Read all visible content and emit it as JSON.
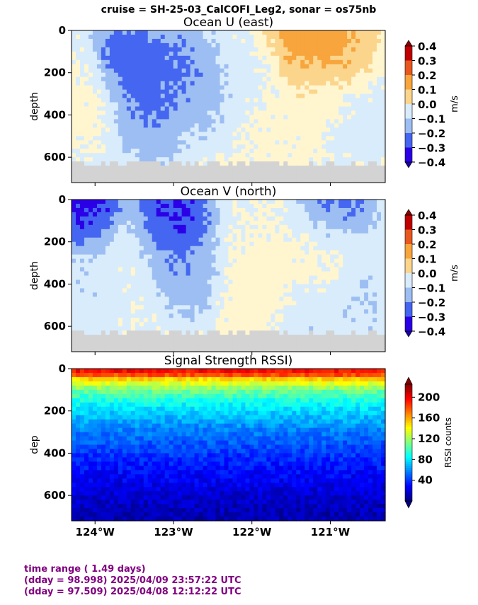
{
  "suptitle": "cruise = SH-25-03_CalCOFI_Leg2,  sonar = os75nb",
  "footer": {
    "line1": "time range ( 1.49 days)",
    "line2": "(dday = 98.998) 2025/04/09 23:57:22 UTC",
    "line3": "(dday = 97.509) 2025/04/08 12:12:22 UTC"
  },
  "chart_data": [
    {
      "type": "heatmap",
      "title": "Ocean U (east)",
      "ylabel": "depth",
      "ylim": [
        720,
        0
      ],
      "yticks": [
        0,
        200,
        400,
        600
      ],
      "xlim": [
        -124.3,
        -120.3
      ],
      "xticks": [
        -124,
        -123,
        -122,
        -121
      ],
      "xtick_labels": [
        "124°W",
        "123°W",
        "122°W",
        "121°W"
      ],
      "show_xticklabels": false,
      "colorbar": {
        "label": "m/s",
        "ticks": [
          "0.4",
          "0.3",
          "0.2",
          "0.1",
          "0.0",
          "−0.1",
          "−0.2",
          "−0.3",
          "−0.4"
        ],
        "vmin": -0.4,
        "vmax": 0.4
      },
      "colormap": "rdbu_discrete",
      "bottom_mask_depth": 620,
      "features": [
        {
          "x": -123.6,
          "y": 150,
          "value": -0.35
        },
        {
          "x": -123.2,
          "y": 250,
          "value": -0.28
        },
        {
          "x": -123.3,
          "y": 420,
          "value": -0.22
        },
        {
          "x": -122.9,
          "y": 180,
          "value": -0.25
        },
        {
          "x": -122.6,
          "y": 300,
          "value": -0.15
        },
        {
          "x": -124.1,
          "y": 300,
          "value": 0.05
        },
        {
          "x": -121.9,
          "y": 200,
          "value": -0.05
        },
        {
          "x": -121.4,
          "y": 80,
          "value": 0.35
        },
        {
          "x": -120.9,
          "y": 60,
          "value": 0.28
        },
        {
          "x": -121.2,
          "y": 300,
          "value": 0.06
        },
        {
          "x": -120.6,
          "y": 450,
          "value": -0.05
        },
        {
          "x": -121.7,
          "y": 500,
          "value": 0.04
        }
      ]
    },
    {
      "type": "heatmap",
      "title": "Ocean V (north)",
      "ylabel": "depth",
      "ylim": [
        720,
        0
      ],
      "yticks": [
        0,
        200,
        400,
        600
      ],
      "xlim": [
        -124.3,
        -120.3
      ],
      "xticks": [
        -124,
        -123,
        -122,
        -121
      ],
      "xtick_labels": [
        "124°W",
        "123°W",
        "122°W",
        "121°W"
      ],
      "show_xticklabels": false,
      "colorbar": {
        "label": "m/s",
        "ticks": [
          "0.4",
          "0.3",
          "0.2",
          "0.1",
          "0.0",
          "−0.1",
          "−0.2",
          "−0.3",
          "−0.4"
        ],
        "vmin": -0.4,
        "vmax": 0.4
      },
      "colormap": "rdbu_discrete",
      "bottom_mask_depth": 620,
      "features": [
        {
          "x": -124.1,
          "y": 40,
          "value": -0.4
        },
        {
          "x": -123.0,
          "y": 50,
          "value": -0.4
        },
        {
          "x": -123.1,
          "y": 200,
          "value": -0.3
        },
        {
          "x": -122.8,
          "y": 350,
          "value": -0.2
        },
        {
          "x": -123.5,
          "y": 300,
          "value": 0.02
        },
        {
          "x": -124.0,
          "y": 400,
          "value": -0.1
        },
        {
          "x": -122.0,
          "y": 350,
          "value": 0.02
        },
        {
          "x": -121.9,
          "y": 450,
          "value": 0.12
        },
        {
          "x": -121.0,
          "y": 250,
          "value": 0.05
        },
        {
          "x": -120.9,
          "y": 40,
          "value": -0.3
        },
        {
          "x": -120.6,
          "y": 450,
          "value": -0.12
        },
        {
          "x": -121.4,
          "y": 600,
          "value": -0.1
        }
      ]
    },
    {
      "type": "heatmap",
      "title": "Signal Strength RSSI)",
      "ylabel": "dep",
      "ylim": [
        720,
        0
      ],
      "yticks": [
        0,
        200,
        400,
        600
      ],
      "xlim": [
        -124.3,
        -120.3
      ],
      "xticks": [
        -124,
        -123,
        -122,
        -121
      ],
      "xtick_labels": [
        "124°W",
        "123°W",
        "122°W",
        "121°W"
      ],
      "show_xticklabels": true,
      "colorbar": {
        "label": "RSSI counts",
        "ticks": [
          "200",
          "160",
          "120",
          "80",
          "40"
        ],
        "tick_values": [
          200,
          160,
          120,
          80,
          40
        ],
        "vmin": 0,
        "vmax": 225
      },
      "colormap": "jet",
      "profile": [
        {
          "depth": 20,
          "value": 195
        },
        {
          "depth": 50,
          "value": 150
        },
        {
          "depth": 100,
          "value": 110
        },
        {
          "depth": 150,
          "value": 90
        },
        {
          "depth": 200,
          "value": 75
        },
        {
          "depth": 300,
          "value": 55
        },
        {
          "depth": 400,
          "value": 40
        },
        {
          "depth": 500,
          "value": 28
        },
        {
          "depth": 600,
          "value": 18
        },
        {
          "depth": 700,
          "value": 10
        }
      ]
    }
  ]
}
